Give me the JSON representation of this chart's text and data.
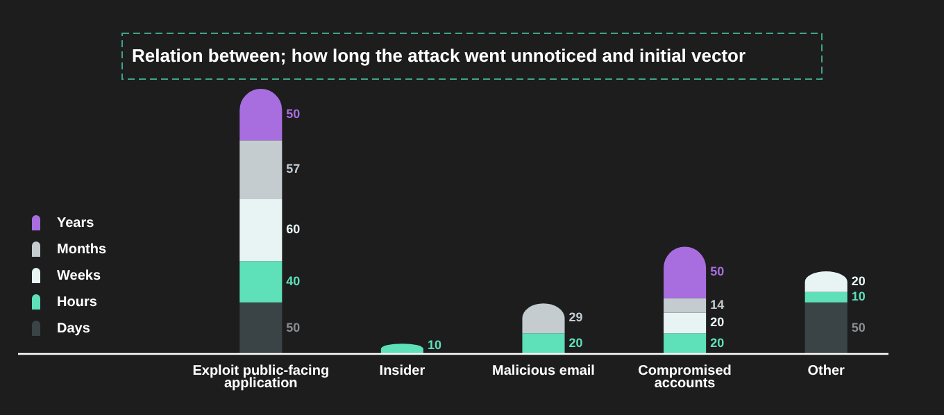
{
  "chart_data": {
    "type": "bar",
    "title": "Relation between; how long the attack went unnoticed and initial vector",
    "categories": [
      "Exploit public-facing application",
      "Insider",
      "Malicious email",
      "Compromised accounts",
      "Other"
    ],
    "stacked": true,
    "data_labels": true,
    "legend": "left",
    "series": [
      {
        "name": "Days",
        "color": "#3a4446",
        "values": [
          50,
          null,
          null,
          null,
          50
        ]
      },
      {
        "name": "Hours",
        "color": "#5ee0b8",
        "values": [
          40,
          10,
          20,
          20,
          10
        ]
      },
      {
        "name": "Weeks",
        "color": "#e8f4f4",
        "values": [
          60,
          null,
          null,
          20,
          20
        ]
      },
      {
        "name": "Months",
        "color": "#c4ccd0",
        "values": [
          57,
          null,
          29,
          14,
          null
        ]
      },
      {
        "name": "Years",
        "color": "#a86ee0",
        "values": [
          50,
          null,
          null,
          50,
          null
        ]
      }
    ]
  }
}
